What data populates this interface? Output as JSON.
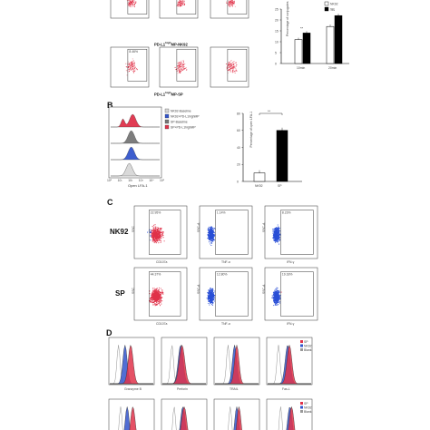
{
  "panelA": {
    "row1_label": "PD-L1",
    "row1_sup": "high",
    "row1_suffix": "MP-NK92",
    "row2_label": "PD-L1",
    "row2_sup": "high",
    "row2_suffix": "MP-SP",
    "flow_gate_values_row1": [
      "",
      "",
      ""
    ],
    "flow_gate_values_row2": [
      "8.46%",
      "",
      ""
    ],
    "chart": {
      "ylabel": "Percentage of conjugates",
      "legend": [
        "NK92",
        "SP"
      ],
      "categories": [
        "10min",
        "20min"
      ],
      "significance": [
        "**",
        "**"
      ],
      "colors": {
        "NK92": "#ffffff",
        "SP": "#000000"
      }
    }
  },
  "panelB": {
    "label": "B",
    "xlabel": "Open LFA-1",
    "legend": [
      "NK92-Baseline",
      "NK92+PD-L1highMP",
      "SP-Baseline",
      "SP+PD-L1highMP"
    ],
    "legend_colors": [
      "#d7d7d7",
      "#3355cc",
      "#777777",
      "#e0324a"
    ],
    "chart": {
      "ylabel": "Percentage of open LFA-1",
      "categories": [
        "NK92",
        "SP"
      ],
      "significance": "**"
    }
  },
  "panelC": {
    "label": "C",
    "rows": [
      {
        "name": "NK92",
        "gates": [
          "22.95%",
          "1.14%",
          "8.23%"
        ]
      },
      {
        "name": "SP",
        "gates": [
          "44.37%",
          "12.80%",
          "19.18%"
        ]
      }
    ],
    "xlabels": [
      "CD107a",
      "TNF-α",
      "IFN-γ"
    ],
    "ylabels": [
      "SSC",
      "SSC-A",
      "SSC-A"
    ]
  },
  "panelD": {
    "label": "D",
    "xlabels": [
      "Granzyme B",
      "Perforin",
      "TRAIL",
      "Fas-L"
    ],
    "legend": [
      "SP",
      "NK92",
      "Blank"
    ],
    "legend_colors": [
      "#e0324a",
      "#3355cc",
      "#999999"
    ]
  },
  "chart_data": [
    {
      "type": "bar",
      "categories": [
        "10min",
        "20min"
      ],
      "series": [
        {
          "name": "NK92",
          "values": [
            11,
            17
          ]
        },
        {
          "name": "SP",
          "values": [
            14,
            22
          ]
        }
      ],
      "title": "",
      "xlabel": "",
      "ylabel": "Percentage of conjugates",
      "ylim": [
        0,
        25
      ]
    },
    {
      "type": "bar",
      "categories": [
        "NK92",
        "SP"
      ],
      "values": [
        10,
        60
      ],
      "title": "",
      "xlabel": "",
      "ylabel": "Percentage of open LFA-1",
      "ylim": [
        0,
        80
      ]
    }
  ]
}
